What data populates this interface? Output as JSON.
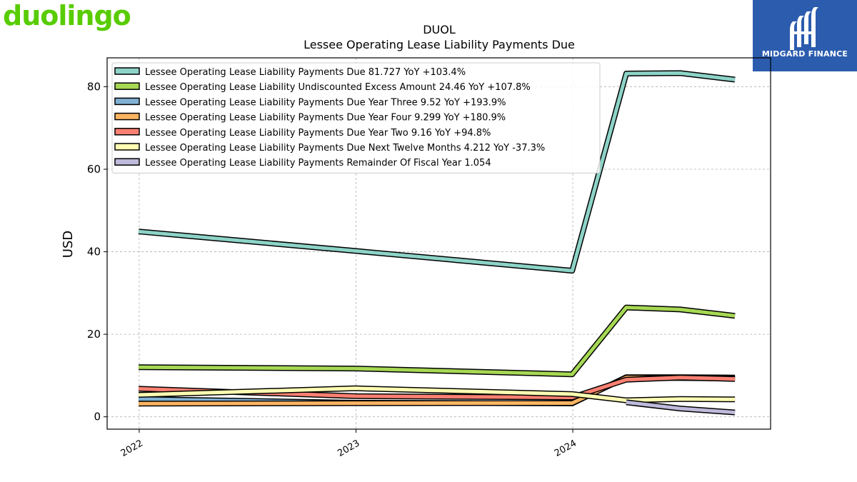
{
  "logos": {
    "left_text": "duolingo",
    "right_text": "MIDGARD FINANCE",
    "left_color": "#58cc02",
    "right_bg": "#2b5cae"
  },
  "chart_data": {
    "type": "line",
    "title": "DUOL",
    "subtitle": "Lessee Operating Lease Liability Payments Due",
    "ylabel": "USD",
    "xlabel": "",
    "ylim": [
      -3,
      87
    ],
    "yticks": [
      0,
      20,
      40,
      60,
      80
    ],
    "xlim": [
      "2021-11-08",
      "2024-11-29"
    ],
    "xticks": [
      {
        "label": "2022",
        "date": "2022-01-01"
      },
      {
        "label": "2023",
        "date": "2023-01-01"
      },
      {
        "label": "2024",
        "date": "2024-01-01"
      }
    ],
    "grid": true,
    "legend_position": "top-left",
    "series": [
      {
        "name": "Lessee Operating Lease Liability Payments Due",
        "legend": "Lessee Operating Lease Liability Payments Due  81.727 YoY +103.4%",
        "color": "#8dd3c7",
        "points": [
          [
            "2021-12-31",
            44.9
          ],
          [
            "2022-12-31",
            40.2
          ],
          [
            "2023-12-31",
            35.4
          ],
          [
            "2024-03-31",
            83.2
          ],
          [
            "2024-06-30",
            83.3
          ],
          [
            "2024-09-30",
            81.727
          ]
        ]
      },
      {
        "name": "Lessee Operating Lease Liability Undiscounted Excess Amount",
        "legend": "Lessee Operating Lease Liability Undiscounted Excess Amount  24.46 YoY +107.8%",
        "color": "#a6d854",
        "points": [
          [
            "2021-12-31",
            12.0
          ],
          [
            "2022-12-31",
            11.7
          ],
          [
            "2023-12-31",
            10.3
          ],
          [
            "2024-03-31",
            26.5
          ],
          [
            "2024-06-30",
            26.0
          ],
          [
            "2024-09-30",
            24.46
          ]
        ]
      },
      {
        "name": "Lessee Operating Lease Liability Payments Due Year Three",
        "legend": "Lessee Operating Lease Liability Payments Due Year Three  9.52 YoY +193.9%",
        "color": "#80b1d3",
        "points": [
          [
            "2021-12-31",
            4.3
          ],
          [
            "2022-12-31",
            3.4
          ],
          [
            "2023-12-31",
            3.24
          ],
          [
            "2024-03-31",
            9.6
          ],
          [
            "2024-06-30",
            9.6
          ],
          [
            "2024-09-30",
            9.52
          ]
        ]
      },
      {
        "name": "Lessee Operating Lease Liability Payments Due Year Four",
        "legend": "Lessee Operating Lease Liability Payments Due Year Four  9.299 YoY +180.9%",
        "color": "#fdb462",
        "points": [
          [
            "2021-12-31",
            3.2
          ],
          [
            "2022-12-31",
            3.3
          ],
          [
            "2023-12-31",
            3.31
          ],
          [
            "2024-03-31",
            9.5
          ],
          [
            "2024-06-30",
            9.4
          ],
          [
            "2024-09-30",
            9.299
          ]
        ]
      },
      {
        "name": "Lessee Operating Lease Liability Payments Due Year Two",
        "legend": "Lessee Operating Lease Liability Payments Due Year Two  9.16 YoY +94.8%",
        "color": "#fb8072",
        "points": [
          [
            "2021-12-31",
            6.8
          ],
          [
            "2022-12-31",
            5.0
          ],
          [
            "2023-12-31",
            4.7
          ],
          [
            "2024-03-31",
            9.0
          ],
          [
            "2024-06-30",
            9.5
          ],
          [
            "2024-09-30",
            9.16
          ]
        ]
      },
      {
        "name": "Lessee Operating Lease Liability Payments Due Next Twelve Months",
        "legend": "Lessee Operating Lease Liability Payments Due Next Twelve Months  4.212 YoY -37.3%",
        "color": "#ffffb3",
        "points": [
          [
            "2021-12-31",
            5.3
          ],
          [
            "2022-12-31",
            6.9
          ],
          [
            "2023-12-31",
            5.5
          ],
          [
            "2024-03-31",
            4.0
          ],
          [
            "2024-06-30",
            4.3
          ],
          [
            "2024-09-30",
            4.212
          ]
        ]
      },
      {
        "name": "Lessee Operating Lease Liability Payments Remainder Of Fiscal Year",
        "legend": "Lessee Operating Lease Liability Payments Remainder Of Fiscal Year  1.054",
        "color": "#bebada",
        "points": [
          [
            "2024-03-31",
            3.5
          ],
          [
            "2024-06-30",
            2.0
          ],
          [
            "2024-09-30",
            1.054
          ]
        ]
      }
    ]
  }
}
